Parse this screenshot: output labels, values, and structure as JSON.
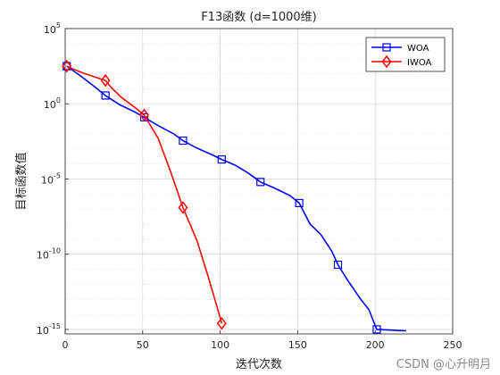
{
  "chart_data": {
    "type": "line",
    "title": "F13函数 (d=1000维)",
    "xlabel": "迭代次数",
    "ylabel": "目标函数值",
    "xlim": [
      0,
      250
    ],
    "ylim_exponent": [
      -15.3,
      5
    ],
    "yscale": "log",
    "x_ticks": [
      "0",
      "50",
      "100",
      "150",
      "200",
      "250"
    ],
    "y_tick_mantissa": "10",
    "y_ticks": [
      {
        "exp": 5,
        "label": "5"
      },
      {
        "exp": 0,
        "label": "0"
      },
      {
        "exp": -5,
        "label": "-5"
      },
      {
        "exp": -10,
        "label": "-10"
      },
      {
        "exp": -15,
        "label": "-15"
      }
    ],
    "grid": true,
    "legend_placement": "top-right",
    "series": [
      {
        "name": "WOA",
        "color": "#0000ff",
        "marker": "square",
        "points_log10": [
          [
            1,
            2.5
          ],
          [
            10,
            1.85
          ],
          [
            20,
            1.05
          ],
          [
            26,
            0.55
          ],
          [
            35,
            -0.05
          ],
          [
            45,
            -0.55
          ],
          [
            51,
            -0.9
          ],
          [
            60,
            -1.45
          ],
          [
            70,
            -2.0
          ],
          [
            76,
            -2.45
          ],
          [
            85,
            -2.95
          ],
          [
            95,
            -3.4
          ],
          [
            101,
            -3.7
          ],
          [
            110,
            -4.1
          ],
          [
            118,
            -4.6
          ],
          [
            126,
            -5.2
          ],
          [
            135,
            -5.6
          ],
          [
            145,
            -6.1
          ],
          [
            151,
            -6.6
          ],
          [
            158,
            -8.0
          ],
          [
            165,
            -8.7
          ],
          [
            172,
            -9.8
          ],
          [
            176,
            -10.7
          ],
          [
            182,
            -11.7
          ],
          [
            190,
            -12.9
          ],
          [
            196,
            -13.7
          ],
          [
            201,
            -15.0
          ],
          [
            220,
            -15.1
          ]
        ],
        "marker_points_log10": [
          [
            1,
            2.5
          ],
          [
            26,
            0.55
          ],
          [
            51,
            -0.9
          ],
          [
            76,
            -2.45
          ],
          [
            101,
            -3.7
          ],
          [
            126,
            -5.2
          ],
          [
            151,
            -6.6
          ],
          [
            176,
            -10.7
          ],
          [
            201,
            -15.0
          ]
        ]
      },
      {
        "name": "IWOA",
        "color": "#ff0000",
        "marker": "diamond",
        "points_log10": [
          [
            1,
            2.5
          ],
          [
            10,
            2.1
          ],
          [
            20,
            1.75
          ],
          [
            26,
            1.55
          ],
          [
            30,
            1.05
          ],
          [
            36,
            0.45
          ],
          [
            45,
            -0.25
          ],
          [
            51,
            -0.75
          ],
          [
            60,
            -2.3
          ],
          [
            68,
            -4.5
          ],
          [
            76,
            -6.9
          ],
          [
            85,
            -9.1
          ],
          [
            92,
            -11.4
          ],
          [
            98,
            -13.5
          ],
          [
            101,
            -14.6
          ]
        ],
        "marker_points_log10": [
          [
            1,
            2.5
          ],
          [
            26,
            1.55
          ],
          [
            51,
            -0.75
          ],
          [
            76,
            -6.9
          ],
          [
            101,
            -14.6
          ]
        ]
      }
    ]
  },
  "watermark": "CSDN @心升明月"
}
